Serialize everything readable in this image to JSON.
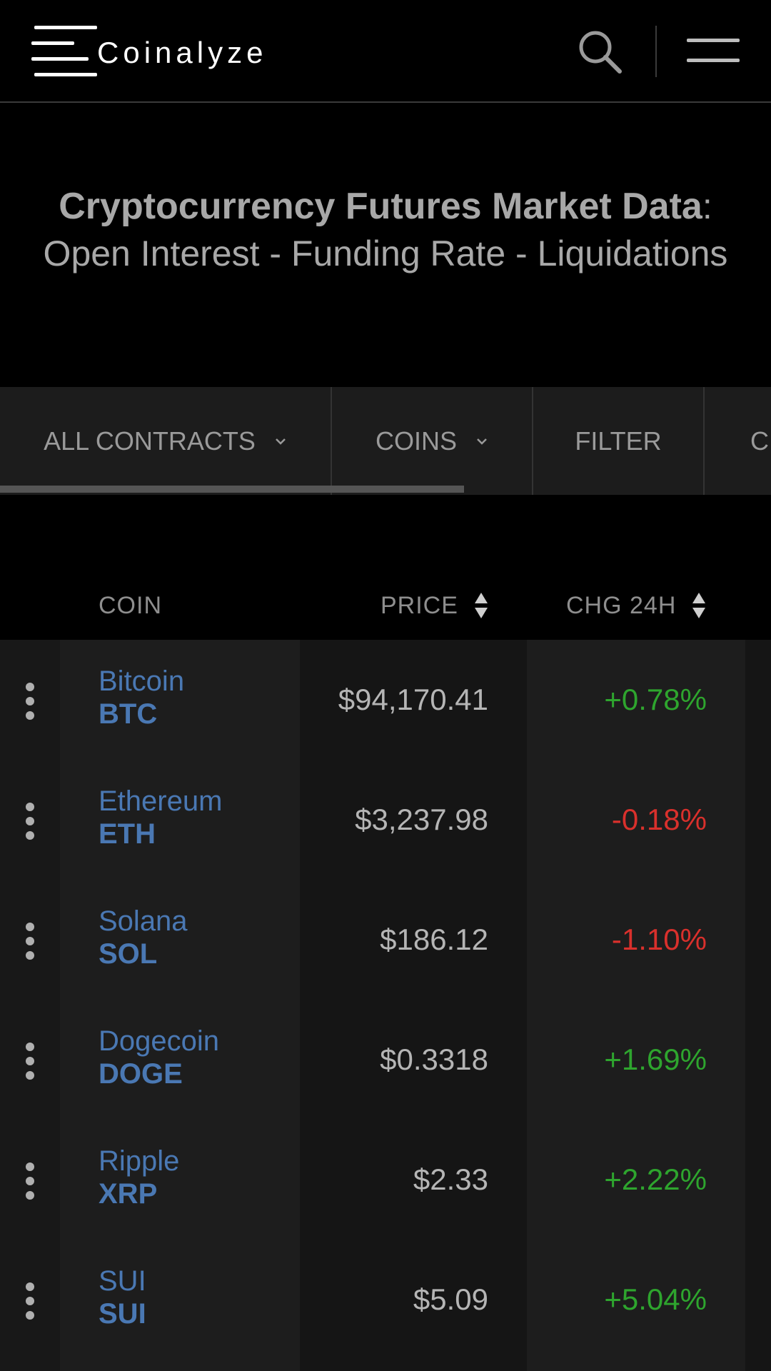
{
  "header": {
    "logo_text": "Coinalyze",
    "search_icon": "search-icon",
    "menu_icon": "hamburger-menu-icon"
  },
  "hero": {
    "title_bold": "Cryptocurrency Futures Market Data",
    "title_rest": ": Open Interest - Funding Rate - Liquidations"
  },
  "tabs": [
    {
      "label": "ALL CONTRACTS",
      "has_dropdown": true
    },
    {
      "label": "COINS",
      "has_dropdown": true
    },
    {
      "label": "FILTER",
      "has_dropdown": false
    },
    {
      "label": "C",
      "has_dropdown": false
    }
  ],
  "table": {
    "columns": {
      "coin": "COIN",
      "price": "PRICE",
      "chg24h": "CHG 24H"
    },
    "rows": [
      {
        "name": "Bitcoin",
        "symbol": "BTC",
        "price": "$94,170.41",
        "change": "+0.78%",
        "direction": "up"
      },
      {
        "name": "Ethereum",
        "symbol": "ETH",
        "price": "$3,237.98",
        "change": "-0.18%",
        "direction": "down"
      },
      {
        "name": "Solana",
        "symbol": "SOL",
        "price": "$186.12",
        "change": "-1.10%",
        "direction": "down"
      },
      {
        "name": "Dogecoin",
        "symbol": "DOGE",
        "price": "$0.3318",
        "change": "+1.69%",
        "direction": "up"
      },
      {
        "name": "Ripple",
        "symbol": "XRP",
        "price": "$2.33",
        "change": "+2.22%",
        "direction": "up"
      },
      {
        "name": "SUI",
        "symbol": "SUI",
        "price": "$5.09",
        "change": "+5.04%",
        "direction": "up"
      }
    ]
  },
  "colors": {
    "background": "#000000",
    "link_blue": "#4a78b3",
    "positive": "#2ea52e",
    "negative": "#d9302c"
  }
}
